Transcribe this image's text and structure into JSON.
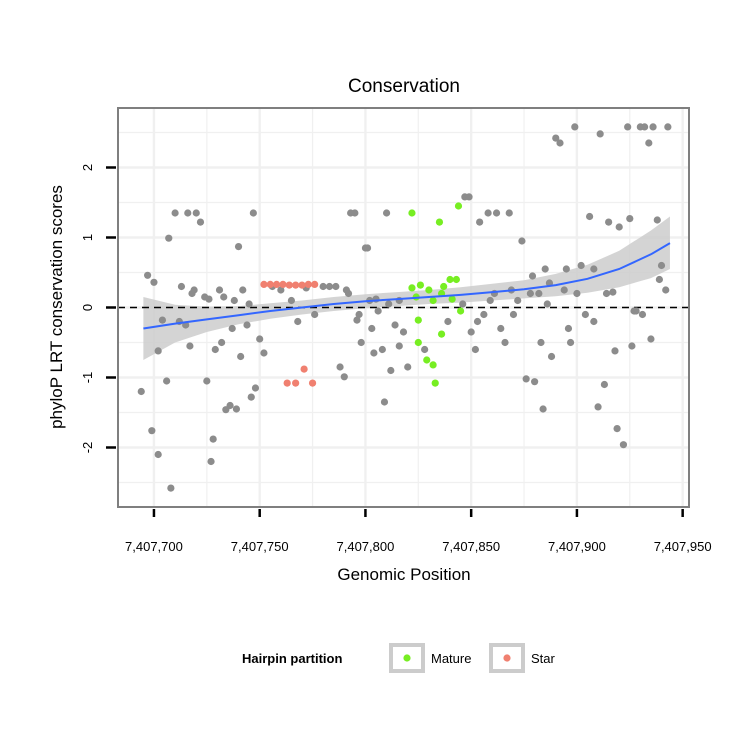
{
  "chart_data": {
    "type": "scatter",
    "title": "Conservation",
    "xlabel": "Genomic Position",
    "ylabel": "phyloP LRT conservation scores",
    "xlim": [
      7407683,
      7407953
    ],
    "ylim": [
      -2.85,
      2.85
    ],
    "x_ticks": [
      7407700,
      7407750,
      7407800,
      7407850,
      7407900,
      7407950
    ],
    "x_tick_labels": [
      "7,407,700",
      "7,407,750",
      "7,407,800",
      "7,407,850",
      "7,407,900",
      "7,407,950"
    ],
    "y_ticks": [
      -2,
      -1,
      0,
      1,
      2
    ],
    "y_tick_labels": [
      "-2",
      "-1",
      "0",
      "1",
      "2"
    ],
    "grid": true,
    "reference_line": {
      "y": 0,
      "style": "dashed",
      "color": "#000000"
    },
    "legend": {
      "title": "Hairpin partition",
      "placement": "bottom",
      "entries": [
        {
          "label": "Mature",
          "color": "#77ee22"
        },
        {
          "label": "Star",
          "color": "#f08070"
        }
      ]
    },
    "colors": {
      "other": "#8c8c8c",
      "mature": "#77ee22",
      "star": "#f08070",
      "smooth_line": "#3366ff",
      "confidence_band": "#cccccc",
      "panel_background": "#ffffff",
      "panel_border": "#7f7f7f",
      "grid": "#f0f0f0"
    },
    "smooth": {
      "x": [
        7407695,
        7407710,
        7407725,
        7407740,
        7407755,
        7407770,
        7407785,
        7407800,
        7407815,
        7407830,
        7407845,
        7407860,
        7407875,
        7407890,
        7407905,
        7407920,
        7407935,
        7407944
      ],
      "y": [
        -0.3,
        -0.23,
        -0.17,
        -0.11,
        -0.05,
        0.0,
        0.05,
        0.09,
        0.12,
        0.15,
        0.18,
        0.22,
        0.26,
        0.32,
        0.41,
        0.55,
        0.76,
        0.92
      ],
      "lower": [
        -0.75,
        -0.5,
        -0.35,
        -0.24,
        -0.16,
        -0.1,
        -0.05,
        -0.01,
        0.02,
        0.05,
        0.07,
        0.1,
        0.13,
        0.16,
        0.21,
        0.29,
        0.42,
        0.55
      ],
      "upper": [
        0.15,
        0.04,
        0.01,
        0.02,
        0.06,
        0.1,
        0.15,
        0.19,
        0.22,
        0.25,
        0.29,
        0.34,
        0.39,
        0.48,
        0.61,
        0.81,
        1.1,
        1.3
      ]
    },
    "series": [
      {
        "name": "Mature",
        "points": [
          [
            7407822,
            1.35
          ],
          [
            7407835,
            1.22
          ],
          [
            7407844,
            1.45
          ],
          [
            7407822,
            0.28
          ],
          [
            7407826,
            0.32
          ],
          [
            7407830,
            0.25
          ],
          [
            7407837,
            0.3
          ],
          [
            7407840,
            0.4
          ],
          [
            7407843,
            0.4
          ],
          [
            7407824,
            0.15
          ],
          [
            7407832,
            0.1
          ],
          [
            7407836,
            0.2
          ],
          [
            7407841,
            0.12
          ],
          [
            7407845,
            -0.05
          ],
          [
            7407825,
            -0.18
          ],
          [
            7407836,
            -0.38
          ],
          [
            7407825,
            -0.5
          ],
          [
            7407829,
            -0.75
          ],
          [
            7407832,
            -0.82
          ],
          [
            7407833,
            -1.08
          ]
        ]
      },
      {
        "name": "Star",
        "points": [
          [
            7407752,
            0.33
          ],
          [
            7407755,
            0.33
          ],
          [
            7407758,
            0.33
          ],
          [
            7407761,
            0.33
          ],
          [
            7407764,
            0.32
          ],
          [
            7407767,
            0.32
          ],
          [
            7407770,
            0.32
          ],
          [
            7407773,
            0.33
          ],
          [
            7407776,
            0.33
          ],
          [
            7407771,
            -0.88
          ],
          [
            7407763,
            -1.08
          ],
          [
            7407767,
            -1.08
          ],
          [
            7407775,
            -1.08
          ]
        ]
      },
      {
        "points": [
          [
            7407694,
            -1.2
          ],
          [
            7407697,
            0.46
          ],
          [
            7407700,
            0.36
          ],
          [
            7407702,
            -0.62
          ],
          [
            7407699,
            -1.76
          ],
          [
            7407702,
            -2.1
          ],
          [
            7407704,
            -0.18
          ],
          [
            7407706,
            -1.05
          ],
          [
            7407707,
            0.99
          ],
          [
            7407708,
            -2.58
          ],
          [
            7407710,
            1.35
          ],
          [
            7407713,
            0.3
          ],
          [
            7407715,
            -0.25
          ],
          [
            7407716,
            1.35
          ],
          [
            7407718,
            0.2
          ],
          [
            7407719,
            0.25
          ],
          [
            7407720,
            1.35
          ],
          [
            7407722,
            1.22
          ],
          [
            7407724,
            0.15
          ],
          [
            7407725,
            -1.05
          ],
          [
            7407726,
            0.12
          ],
          [
            7407727,
            -2.2
          ],
          [
            7407728,
            -1.88
          ],
          [
            7407729,
            -0.6
          ],
          [
            7407731,
            0.25
          ],
          [
            7407732,
            -0.5
          ],
          [
            7407734,
            -1.46
          ],
          [
            7407736,
            -1.4
          ],
          [
            7407738,
            0.1
          ],
          [
            7407739,
            -1.45
          ],
          [
            7407740,
            0.87
          ],
          [
            7407742,
            0.25
          ],
          [
            7407744,
            -0.25
          ],
          [
            7407746,
            -1.28
          ],
          [
            7407747,
            1.35
          ],
          [
            7407748,
            -1.15
          ],
          [
            7407750,
            -0.45
          ],
          [
            7407752,
            -0.65
          ],
          [
            7407756,
            0.3
          ],
          [
            7407760,
            0.25
          ],
          [
            7407765,
            0.1
          ],
          [
            7407768,
            -0.2
          ],
          [
            7407772,
            0.28
          ],
          [
            7407776,
            -0.1
          ],
          [
            7407780,
            0.3
          ],
          [
            7407783,
            0.3
          ],
          [
            7407786,
            0.3
          ],
          [
            7407788,
            -0.85
          ],
          [
            7407790,
            -0.99
          ],
          [
            7407792,
            0.2
          ],
          [
            7407793,
            1.35
          ],
          [
            7407795,
            1.35
          ],
          [
            7407796,
            -0.18
          ],
          [
            7407798,
            -0.5
          ],
          [
            7407800,
            0.85
          ],
          [
            7407801,
            0.85
          ],
          [
            7407802,
            0.1
          ],
          [
            7407803,
            -0.3
          ],
          [
            7407804,
            -0.65
          ],
          [
            7407806,
            -0.05
          ],
          [
            7407808,
            -0.6
          ],
          [
            7407809,
            -1.35
          ],
          [
            7407810,
            1.35
          ],
          [
            7407812,
            -0.9
          ],
          [
            7407814,
            -0.25
          ],
          [
            7407816,
            0.1
          ],
          [
            7407818,
            -0.35
          ],
          [
            7407820,
            -0.85
          ],
          [
            7407828,
            -0.6
          ],
          [
            7407839,
            -0.2
          ],
          [
            7407847,
            1.58
          ],
          [
            7407849,
            1.58
          ],
          [
            7407850,
            -0.35
          ],
          [
            7407852,
            -0.6
          ],
          [
            7407854,
            1.22
          ],
          [
            7407856,
            -0.1
          ],
          [
            7407858,
            1.35
          ],
          [
            7407861,
            0.2
          ],
          [
            7407862,
            1.35
          ],
          [
            7407864,
            -0.3
          ],
          [
            7407866,
            -0.5
          ],
          [
            7407868,
            1.35
          ],
          [
            7407870,
            -0.1
          ],
          [
            7407872,
            0.1
          ],
          [
            7407874,
            0.95
          ],
          [
            7407876,
            -1.02
          ],
          [
            7407878,
            0.2
          ],
          [
            7407880,
            -1.06
          ],
          [
            7407882,
            0.2
          ],
          [
            7407883,
            -0.5
          ],
          [
            7407884,
            -1.45
          ],
          [
            7407885,
            0.55
          ],
          [
            7407886,
            0.05
          ],
          [
            7407888,
            -0.7
          ],
          [
            7407890,
            2.42
          ],
          [
            7407892,
            2.35
          ],
          [
            7407894,
            0.25
          ],
          [
            7407895,
            0.55
          ],
          [
            7407897,
            -0.5
          ],
          [
            7407899,
            2.58
          ],
          [
            7407902,
            0.6
          ],
          [
            7407904,
            -0.1
          ],
          [
            7407906,
            1.3
          ],
          [
            7407908,
            0.55
          ],
          [
            7407910,
            -1.42
          ],
          [
            7407911,
            2.48
          ],
          [
            7407913,
            -1.1
          ],
          [
            7407914,
            0.2
          ],
          [
            7407915,
            1.22
          ],
          [
            7407918,
            -0.62
          ],
          [
            7407919,
            -1.73
          ],
          [
            7407920,
            1.15
          ],
          [
            7407922,
            -1.96
          ],
          [
            7407924,
            2.58
          ],
          [
            7407925,
            1.27
          ],
          [
            7407927,
            -0.05
          ],
          [
            7407930,
            2.58
          ],
          [
            7407932,
            2.58
          ],
          [
            7407934,
            2.35
          ],
          [
            7407936,
            2.58
          ],
          [
            7407938,
            1.25
          ],
          [
            7407939,
            0.4
          ],
          [
            7407940,
            0.6
          ],
          [
            7407942,
            0.25
          ],
          [
            7407943,
            2.58
          ],
          [
            7407935,
            -0.45
          ],
          [
            7407928,
            -0.05
          ],
          [
            7407931,
            -0.1
          ],
          [
            7407917,
            0.22
          ],
          [
            7407908,
            -0.2
          ],
          [
            7407926,
            -0.55
          ],
          [
            7407900,
            0.2
          ],
          [
            7407896,
            -0.3
          ],
          [
            7407887,
            0.35
          ],
          [
            7407879,
            0.45
          ],
          [
            7407869,
            0.25
          ],
          [
            7407859,
            0.1
          ],
          [
            7407853,
            -0.2
          ],
          [
            7407846,
            0.05
          ],
          [
            7407816,
            -0.55
          ],
          [
            7407811,
            0.05
          ],
          [
            7407805,
            0.12
          ],
          [
            7407797,
            -0.1
          ],
          [
            7407791,
            0.25
          ],
          [
            7407712,
            -0.2
          ],
          [
            7407717,
            -0.55
          ],
          [
            7407733,
            0.15
          ],
          [
            7407737,
            -0.3
          ],
          [
            7407741,
            -0.7
          ],
          [
            7407745,
            0.05
          ]
        ]
      }
    ]
  }
}
